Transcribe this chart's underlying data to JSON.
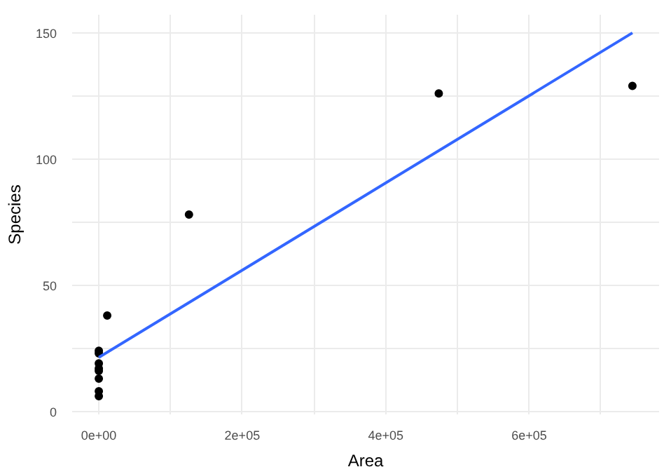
{
  "chart_data": {
    "type": "scatter",
    "xlabel": "Area",
    "ylabel": "Species",
    "series": [
      {
        "marker": "circle",
        "color": "#000000",
        "x": [
          474000,
          744000,
          125700,
          11700,
          0,
          0,
          0,
          0,
          0,
          0,
          0,
          0
        ],
        "values": [
          126,
          129,
          78,
          38,
          24,
          23,
          19,
          17,
          16,
          13,
          8,
          6
        ]
      },
      {
        "type": "line",
        "color": "#3366ff",
        "x": [
          0,
          744000
        ],
        "values": [
          21.4,
          150
        ]
      }
    ],
    "xlim": [
      -37200,
      781200
    ],
    "ylim": [
      -1.2,
      157.2
    ],
    "xticks": [
      {
        "value": 0,
        "label": "0e+00"
      },
      {
        "value": 100000,
        "label": null
      },
      {
        "value": 200000,
        "label": "2e+05"
      },
      {
        "value": 300000,
        "label": null
      },
      {
        "value": 400000,
        "label": "4e+05"
      },
      {
        "value": 500000,
        "label": null
      },
      {
        "value": 600000,
        "label": "6e+05"
      },
      {
        "value": 700000,
        "label": null
      }
    ],
    "yticks": [
      0,
      {
        "value": 25,
        "label": null
      },
      50,
      {
        "value": 75,
        "label": null
      },
      100,
      {
        "value": 125,
        "label": null
      },
      150
    ],
    "grid": true
  }
}
